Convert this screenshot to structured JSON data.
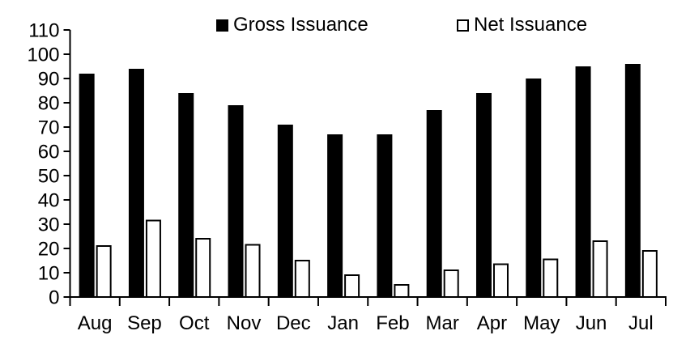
{
  "chart_data": {
    "type": "bar",
    "title": "",
    "xlabel": "",
    "ylabel": "",
    "categories": [
      "Aug",
      "Sep",
      "Oct",
      "Nov",
      "Dec",
      "Jan",
      "Feb",
      "Mar",
      "Apr",
      "May",
      "Jun",
      "Jul"
    ],
    "series": [
      {
        "name": "Gross Issuance",
        "values": [
          92,
          94,
          84,
          79,
          71,
          67,
          67,
          77,
          84,
          90,
          95,
          96
        ]
      },
      {
        "name": "Net Issuance",
        "values": [
          21,
          31.5,
          24,
          21.5,
          15,
          9,
          5,
          11,
          13.5,
          15.5,
          23,
          19
        ]
      }
    ],
    "ylim": [
      0,
      110
    ],
    "ytick_step": 10,
    "grid": false,
    "legend_position": "top",
    "colors": {
      "gross_fill": "#000000",
      "net_fill": "#ffffff",
      "outline": "#000000",
      "axis": "#000000",
      "text": "#000000",
      "background": "#ffffff"
    }
  }
}
